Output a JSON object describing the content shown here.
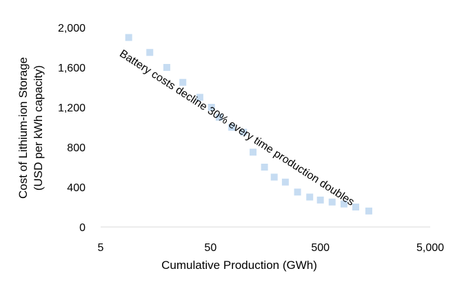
{
  "chart_data": {
    "type": "scatter",
    "xlabel": "Cumulative Production (GWh)",
    "ylabel_lines": [
      "Cost of Lithium-ion Storage",
      "(USD per kWh capacity)"
    ],
    "x_scale": "log",
    "xlim": [
      5,
      5000
    ],
    "ylim": [
      0,
      2000
    ],
    "x_ticks": [
      {
        "value": 5,
        "label": "5"
      },
      {
        "value": 50,
        "label": "50"
      },
      {
        "value": 500,
        "label": "500"
      },
      {
        "value": 5000,
        "label": "5,000"
      }
    ],
    "y_ticks": [
      {
        "value": 0,
        "label": "0"
      },
      {
        "value": 400,
        "label": "400"
      },
      {
        "value": 800,
        "label": "800"
      },
      {
        "value": 1200,
        "label": "1,200"
      },
      {
        "value": 1600,
        "label": "1,600"
      },
      {
        "value": 2000,
        "label": "2,000"
      }
    ],
    "grid": false,
    "annotation": "Battery costs decline 30% every time production doubles",
    "marker_color": "#c6dcf2",
    "points": [
      {
        "x": 9,
        "y": 1900
      },
      {
        "x": 14,
        "y": 1750
      },
      {
        "x": 20,
        "y": 1600
      },
      {
        "x": 28,
        "y": 1450
      },
      {
        "x": 40,
        "y": 1300
      },
      {
        "x": 51,
        "y": 1200
      },
      {
        "x": 60,
        "y": 1100
      },
      {
        "x": 78,
        "y": 1000
      },
      {
        "x": 100,
        "y": 950
      },
      {
        "x": 122,
        "y": 750
      },
      {
        "x": 155,
        "y": 600
      },
      {
        "x": 190,
        "y": 500
      },
      {
        "x": 240,
        "y": 450
      },
      {
        "x": 310,
        "y": 350
      },
      {
        "x": 400,
        "y": 300
      },
      {
        "x": 500,
        "y": 270
      },
      {
        "x": 640,
        "y": 250
      },
      {
        "x": 820,
        "y": 230
      },
      {
        "x": 1050,
        "y": 200
      },
      {
        "x": 1380,
        "y": 160
      }
    ]
  }
}
